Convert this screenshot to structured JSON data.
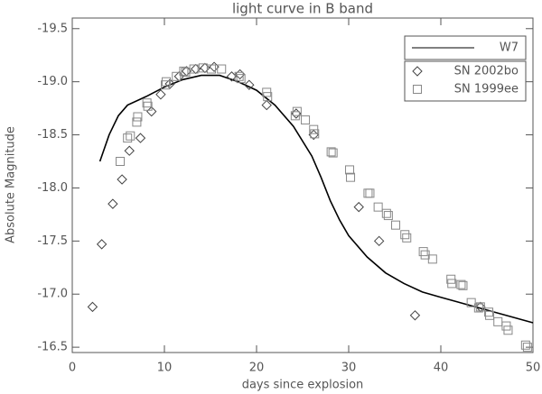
{
  "chart_data": {
    "type": "scatter",
    "title": "light curve in B band",
    "x_label": "days since explosion",
    "y_label": "Absolute Magnitude",
    "xlim": [
      0,
      50
    ],
    "xticks": [
      0,
      10,
      20,
      30,
      40,
      50
    ],
    "ylim": [
      -16.45,
      -19.6
    ],
    "yticks": [
      {
        "value": -16.5,
        "label": "-16.5"
      },
      {
        "value": -17,
        "label": "-17.0"
      },
      {
        "value": -17.5,
        "label": "-17.5"
      },
      {
        "value": -18,
        "label": "-18.0"
      },
      {
        "value": -18.5,
        "label": "-18.5"
      },
      {
        "value": -19,
        "label": "-19.0"
      },
      {
        "value": -19.5,
        "label": "-19.5"
      }
    ],
    "legend": "upper right",
    "series": [
      {
        "name": "W7",
        "color": "#000000",
        "mark": "line",
        "x": [
          3,
          4,
          5,
          6,
          8,
          10,
          12,
          14,
          16,
          18,
          20,
          22,
          24,
          26,
          27,
          28,
          29,
          30,
          32,
          34,
          36,
          38,
          40,
          45,
          50
        ],
        "values": [
          -18.25,
          -18.5,
          -18.68,
          -18.78,
          -18.86,
          -18.95,
          -19.02,
          -19.06,
          -19.06,
          -19.0,
          -18.92,
          -18.78,
          -18.58,
          -18.3,
          -18.1,
          -17.88,
          -17.7,
          -17.55,
          -17.35,
          -17.2,
          -17.1,
          -17.02,
          -16.97,
          -16.85,
          -16.73
        ]
      },
      {
        "name": "SN 2002bo",
        "color": "#444444",
        "mark": "diamond",
        "x": [
          2.2,
          3.2,
          4.4,
          5.4,
          6.2,
          7.4,
          8.6,
          9.6,
          10.6,
          11.6,
          12.4,
          13.4,
          14.4,
          15.4,
          17.3,
          18.2,
          19.2,
          21.1,
          24.3,
          26.2,
          31.1,
          33.3,
          37.2,
          44.3
        ],
        "values": [
          -16.88,
          -17.47,
          -17.85,
          -18.08,
          -18.35,
          -18.47,
          -18.72,
          -18.88,
          -18.98,
          -19.05,
          -19.1,
          -19.12,
          -19.13,
          -19.14,
          -19.05,
          -19.07,
          -18.97,
          -18.78,
          -18.7,
          -18.5,
          -17.82,
          -17.5,
          -16.8,
          -16.88
        ]
      },
      {
        "name": "SN 1999ee",
        "color": "#888888",
        "mark": "square",
        "x": [
          5.2,
          6.0,
          6.3,
          7.0,
          7.1,
          8.1,
          8.2,
          10.1,
          10.2,
          11.3,
          12.1,
          12.3,
          13.2,
          14.2,
          15.1,
          16.2,
          18.1,
          18.3,
          21.1,
          21.2,
          24.2,
          24.4,
          25.3,
          26.2,
          26.3,
          28.1,
          28.3,
          30.1,
          30.2,
          32.1,
          32.3,
          33.2,
          34.1,
          34.3,
          35.1,
          36.1,
          36.3,
          38.1,
          38.3,
          39.1,
          41.1,
          41.2,
          42.2,
          42.4,
          43.3,
          44.1,
          44.3,
          45.2,
          45.3,
          46.2,
          47.1,
          47.3,
          49.2,
          49.4
        ],
        "values": [
          -18.25,
          -18.47,
          -18.49,
          -18.62,
          -18.67,
          -18.8,
          -18.77,
          -18.97,
          -19.0,
          -19.05,
          -19.1,
          -19.09,
          -19.12,
          -19.13,
          -19.12,
          -19.12,
          -19.05,
          -19.03,
          -18.9,
          -18.86,
          -18.68,
          -18.72,
          -18.64,
          -18.55,
          -18.51,
          -18.34,
          -18.33,
          -18.17,
          -18.1,
          -17.95,
          -17.95,
          -17.82,
          -17.76,
          -17.74,
          -17.65,
          -17.56,
          -17.53,
          -17.4,
          -17.37,
          -17.33,
          -17.14,
          -17.1,
          -17.09,
          -17.08,
          -16.92,
          -16.87,
          -16.88,
          -16.83,
          -16.8,
          -16.74,
          -16.7,
          -16.66,
          -16.52,
          -16.5
        ]
      }
    ]
  }
}
